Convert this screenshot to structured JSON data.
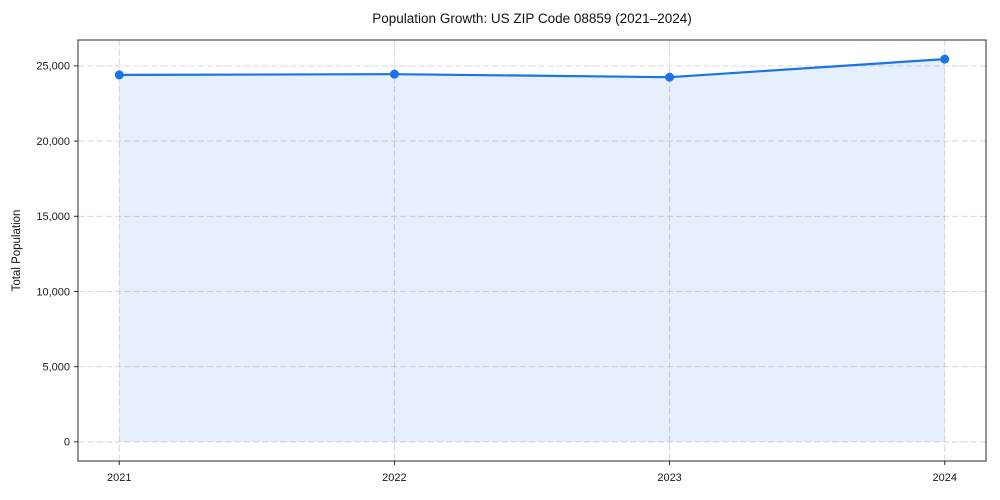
{
  "chart_data": {
    "type": "area",
    "title": "Population Growth: US ZIP Code 08859 (2021–2024)",
    "xlabel": "",
    "ylabel": "Total Population",
    "series_name": "Total Population",
    "categories": [
      "2021",
      "2022",
      "2023",
      "2024"
    ],
    "x": [
      2021,
      2022,
      2023,
      2024
    ],
    "values": [
      24400,
      24450,
      24250,
      25450
    ],
    "baseline_value": 0,
    "x_tick_labels": [
      "2021",
      "2022",
      "2023",
      "2024"
    ],
    "y_ticks": [
      0,
      5000,
      10000,
      15000,
      20000,
      25000
    ],
    "y_tick_labels": [
      "0",
      "5,000",
      "10,000",
      "15,000",
      "20,000",
      "25,000"
    ],
    "xlim": [
      2020.85,
      2024.15
    ],
    "ylim": [
      -1272,
      26722
    ],
    "grid": true,
    "grid_linestyle": "dashed",
    "legend_position": "none",
    "marker": "circle",
    "colors": {
      "line": "#1a73e8",
      "marker": "#1a73e8",
      "fill": "rgba(26,115,232,0.11)",
      "grid": "#d4d4d4",
      "spine": "#2b2b2b",
      "text": "#1a1a1a",
      "background": "#ffffff"
    }
  }
}
